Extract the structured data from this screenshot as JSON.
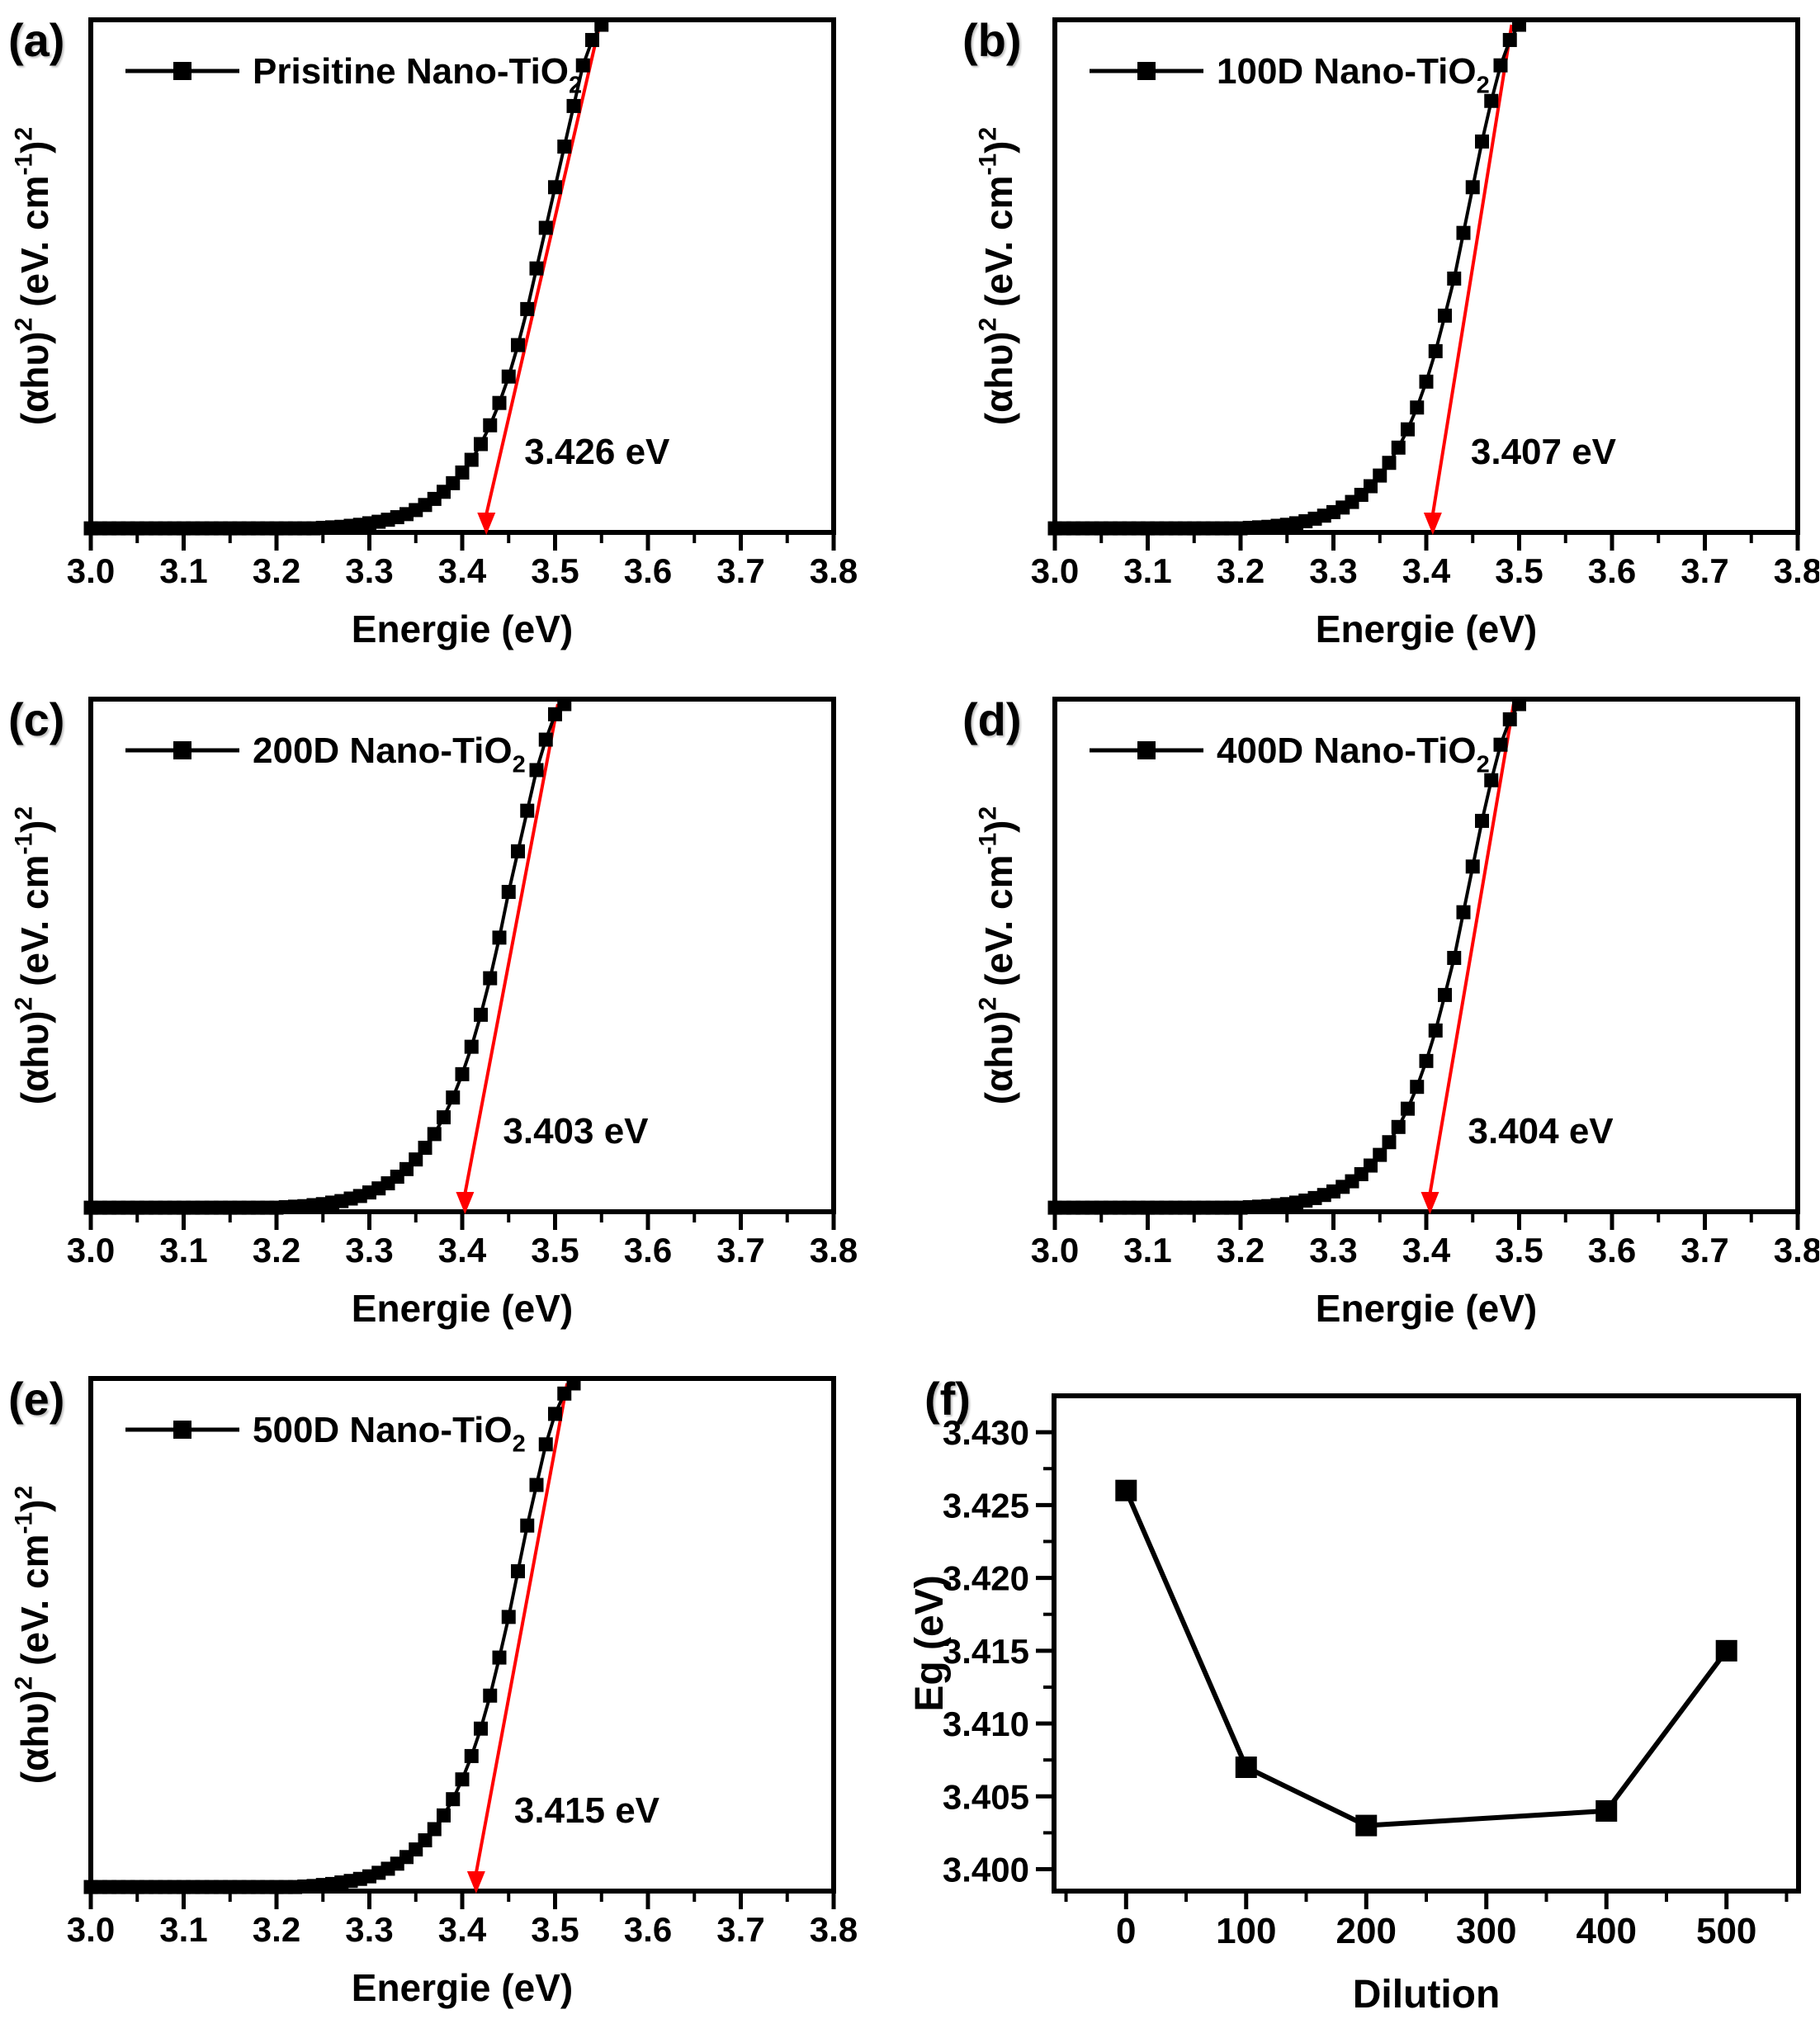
{
  "figure": {
    "background": "#ffffff",
    "ink_color": "#000000",
    "fit_line_color": "#ff0000",
    "marker_shape": "filled-square"
  },
  "chart_data": [
    {
      "type": "line",
      "panel_label": "(a)",
      "legend": "Prisitine Nano-TiO2",
      "legend_rich": [
        [
          "Prisitine Nano-TiO",
          0
        ],
        [
          "2",
          -1
        ]
      ],
      "xlabel": "Energie (eV)",
      "ylabel": "(αhυ)2 (eV. cm-1)2",
      "ylabel_rich": [
        [
          "(αhυ)",
          0
        ],
        [
          "2",
          1
        ],
        [
          " (eV. cm",
          0
        ],
        [
          "-1",
          1
        ],
        [
          ")",
          0
        ],
        [
          "2",
          1
        ]
      ],
      "xlim": [
        3.0,
        3.8
      ],
      "x_major_ticks": [
        3.0,
        3.1,
        3.2,
        3.3,
        3.4,
        3.5,
        3.6,
        3.7,
        3.8
      ],
      "x_major_tick_labels": [
        "3.0",
        "3.1",
        "3.2",
        "3.3",
        "3.4",
        "3.5",
        "3.6",
        "3.7",
        "3.8"
      ],
      "x_minor_step": 0.05,
      "y_axis_tick_labels": "none (arbitrary units)",
      "band_gap_eV": 3.426,
      "annotation": "3.426 eV",
      "fit_line": {
        "x_intercept": 3.426,
        "x_top": 3.548,
        "color": "#ff0000"
      },
      "series": {
        "x_start": 3.0,
        "x_step": 0.01,
        "y_norm": [
          0.008,
          0.008,
          0.008,
          0.008,
          0.008,
          0.008,
          0.008,
          0.008,
          0.008,
          0.008,
          0.008,
          0.008,
          0.008,
          0.008,
          0.008,
          0.008,
          0.008,
          0.008,
          0.008,
          0.008,
          0.008,
          0.008,
          0.008,
          0.008,
          0.008,
          0.009,
          0.01,
          0.011,
          0.013,
          0.015,
          0.018,
          0.021,
          0.025,
          0.03,
          0.036,
          0.044,
          0.054,
          0.066,
          0.08,
          0.097,
          0.118,
          0.143,
          0.174,
          0.211,
          0.255,
          0.307,
          0.369,
          0.44,
          0.52,
          0.6,
          0.68,
          0.76,
          0.84,
          0.92,
          0.97,
          1.0
        ]
      }
    },
    {
      "type": "line",
      "panel_label": "(b)",
      "legend": "100D Nano-TiO2",
      "legend_rich": [
        [
          "100D Nano-TiO",
          0
        ],
        [
          "2",
          -1
        ]
      ],
      "xlabel": "Energie (eV)",
      "ylabel": "(αhυ)2 (eV. cm-1)2",
      "ylabel_rich": [
        [
          "(αhυ)",
          0
        ],
        [
          "2",
          1
        ],
        [
          " (eV. cm",
          0
        ],
        [
          "-1",
          1
        ],
        [
          ")",
          0
        ],
        [
          "2",
          1
        ]
      ],
      "xlim": [
        3.0,
        3.8
      ],
      "x_major_ticks": [
        3.0,
        3.1,
        3.2,
        3.3,
        3.4,
        3.5,
        3.6,
        3.7,
        3.8
      ],
      "x_major_tick_labels": [
        "3.0",
        "3.1",
        "3.2",
        "3.3",
        "3.4",
        "3.5",
        "3.6",
        "3.7",
        "3.8"
      ],
      "x_minor_step": 0.05,
      "y_axis_tick_labels": "none (arbitrary units)",
      "band_gap_eV": 3.407,
      "annotation": "3.407 eV",
      "fit_line": {
        "x_intercept": 3.407,
        "x_top": 3.492,
        "color": "#ff0000"
      },
      "series": {
        "x_start": 3.0,
        "x_step": 0.01,
        "y_norm": [
          0.008,
          0.008,
          0.008,
          0.008,
          0.008,
          0.008,
          0.008,
          0.008,
          0.008,
          0.008,
          0.008,
          0.008,
          0.008,
          0.008,
          0.008,
          0.008,
          0.008,
          0.008,
          0.008,
          0.008,
          0.008,
          0.009,
          0.01,
          0.011,
          0.013,
          0.015,
          0.018,
          0.022,
          0.027,
          0.033,
          0.04,
          0.049,
          0.06,
          0.074,
          0.091,
          0.112,
          0.137,
          0.167,
          0.203,
          0.246,
          0.297,
          0.357,
          0.427,
          0.5,
          0.59,
          0.68,
          0.77,
          0.85,
          0.92,
          0.97,
          1.0
        ]
      }
    },
    {
      "type": "line",
      "panel_label": "(c)",
      "legend": "200D Nano-TiO2",
      "legend_rich": [
        [
          "200D Nano-TiO",
          0
        ],
        [
          "2",
          -1
        ]
      ],
      "xlabel": "Energie (eV)",
      "ylabel": "(αhυ)2 (eV. cm-1)2",
      "ylabel_rich": [
        [
          "(αhυ)",
          0
        ],
        [
          "2",
          1
        ],
        [
          " (eV. cm",
          0
        ],
        [
          "-1",
          1
        ],
        [
          ")",
          0
        ],
        [
          "2",
          1
        ]
      ],
      "xlim": [
        3.0,
        3.8
      ],
      "x_major_ticks": [
        3.0,
        3.1,
        3.2,
        3.3,
        3.4,
        3.5,
        3.6,
        3.7,
        3.8
      ],
      "x_major_tick_labels": [
        "3.0",
        "3.1",
        "3.2",
        "3.3",
        "3.4",
        "3.5",
        "3.6",
        "3.7",
        "3.8"
      ],
      "x_minor_step": 0.05,
      "y_axis_tick_labels": "none (arbitrary units)",
      "band_gap_eV": 3.403,
      "annotation": "3.403 eV",
      "fit_line": {
        "x_intercept": 3.403,
        "x_top": 3.503,
        "color": "#ff0000"
      },
      "series": {
        "x_start": 3.0,
        "x_step": 0.01,
        "y_norm": [
          0.008,
          0.008,
          0.008,
          0.008,
          0.008,
          0.008,
          0.008,
          0.008,
          0.008,
          0.008,
          0.008,
          0.008,
          0.008,
          0.008,
          0.008,
          0.008,
          0.008,
          0.008,
          0.008,
          0.008,
          0.008,
          0.009,
          0.01,
          0.011,
          0.013,
          0.015,
          0.018,
          0.021,
          0.026,
          0.031,
          0.038,
          0.046,
          0.056,
          0.069,
          0.084,
          0.103,
          0.126,
          0.153,
          0.186,
          0.225,
          0.271,
          0.325,
          0.388,
          0.46,
          0.54,
          0.63,
          0.71,
          0.79,
          0.87,
          0.93,
          0.98,
          1.0
        ]
      }
    },
    {
      "type": "line",
      "panel_label": "(d)",
      "legend": "400D Nano-TiO2",
      "legend_rich": [
        [
          "400D Nano-TiO",
          0
        ],
        [
          "2",
          -1
        ]
      ],
      "xlabel": "Energie (eV)",
      "ylabel": "(αhυ)2 (eV. cm-1)2",
      "ylabel_rich": [
        [
          "(αhυ)",
          0
        ],
        [
          "2",
          1
        ],
        [
          " (eV. cm",
          0
        ],
        [
          "-1",
          1
        ],
        [
          ")",
          0
        ],
        [
          "2",
          1
        ]
      ],
      "xlim": [
        3.0,
        3.8
      ],
      "x_major_ticks": [
        3.0,
        3.1,
        3.2,
        3.3,
        3.4,
        3.5,
        3.6,
        3.7,
        3.8
      ],
      "x_major_tick_labels": [
        "3.0",
        "3.1",
        "3.2",
        "3.3",
        "3.4",
        "3.5",
        "3.6",
        "3.7",
        "3.8"
      ],
      "x_minor_step": 0.05,
      "y_axis_tick_labels": "none (arbitrary units)",
      "band_gap_eV": 3.404,
      "annotation": "3.404 eV",
      "fit_line": {
        "x_intercept": 3.404,
        "x_top": 3.494,
        "color": "#ff0000"
      },
      "series": {
        "x_start": 3.0,
        "x_step": 0.01,
        "y_norm": [
          0.008,
          0.008,
          0.008,
          0.008,
          0.008,
          0.008,
          0.008,
          0.008,
          0.008,
          0.008,
          0.008,
          0.008,
          0.008,
          0.008,
          0.008,
          0.008,
          0.008,
          0.008,
          0.008,
          0.008,
          0.008,
          0.009,
          0.01,
          0.011,
          0.013,
          0.015,
          0.018,
          0.022,
          0.027,
          0.033,
          0.04,
          0.049,
          0.06,
          0.074,
          0.091,
          0.112,
          0.137,
          0.167,
          0.203,
          0.246,
          0.297,
          0.357,
          0.427,
          0.5,
          0.59,
          0.68,
          0.77,
          0.85,
          0.92,
          0.97,
          1.0
        ]
      }
    },
    {
      "type": "line",
      "panel_label": "(e)",
      "legend": "500D Nano-TiO2",
      "legend_rich": [
        [
          "500D Nano-TiO",
          0
        ],
        [
          "2",
          -1
        ]
      ],
      "xlabel": "Energie (eV)",
      "ylabel": "(αhυ)2 (eV. cm-1)2",
      "ylabel_rich": [
        [
          "(αhυ)",
          0
        ],
        [
          "2",
          1
        ],
        [
          " (eV. cm",
          0
        ],
        [
          "-1",
          1
        ],
        [
          ")",
          0
        ],
        [
          "2",
          1
        ]
      ],
      "xlim": [
        3.0,
        3.8
      ],
      "x_major_ticks": [
        3.0,
        3.1,
        3.2,
        3.3,
        3.4,
        3.5,
        3.6,
        3.7,
        3.8
      ],
      "x_major_tick_labels": [
        "3.0",
        "3.1",
        "3.2",
        "3.3",
        "3.4",
        "3.5",
        "3.6",
        "3.7",
        "3.8"
      ],
      "x_minor_step": 0.05,
      "y_axis_tick_labels": "none (arbitrary units)",
      "band_gap_eV": 3.415,
      "annotation": "3.415 eV",
      "fit_line": {
        "x_intercept": 3.415,
        "x_top": 3.513,
        "color": "#ff0000"
      },
      "series": {
        "x_start": 3.0,
        "x_step": 0.01,
        "y_norm": [
          0.008,
          0.008,
          0.008,
          0.008,
          0.008,
          0.008,
          0.008,
          0.008,
          0.008,
          0.008,
          0.008,
          0.008,
          0.008,
          0.008,
          0.008,
          0.008,
          0.008,
          0.008,
          0.008,
          0.008,
          0.008,
          0.008,
          0.008,
          0.009,
          0.01,
          0.012,
          0.014,
          0.017,
          0.02,
          0.024,
          0.029,
          0.036,
          0.044,
          0.054,
          0.067,
          0.082,
          0.1,
          0.122,
          0.149,
          0.181,
          0.22,
          0.266,
          0.32,
          0.385,
          0.46,
          0.54,
          0.63,
          0.72,
          0.8,
          0.88,
          0.94,
          0.98,
          1.0
        ]
      }
    },
    {
      "type": "scatter",
      "panel_label": "(f)",
      "xlabel": "Dilution",
      "ylabel": "Eg (eV)",
      "x": [
        0,
        100,
        200,
        400,
        500
      ],
      "y": [
        3.426,
        3.407,
        3.403,
        3.404,
        3.415
      ],
      "xlim": [
        -60,
        560
      ],
      "ylim": [
        3.3985,
        3.4325
      ],
      "x_major_ticks": [
        0,
        100,
        200,
        300,
        400,
        500
      ],
      "x_major_tick_labels": [
        "0",
        "100",
        "200",
        "300",
        "400",
        "500"
      ],
      "x_minor_ticks": [
        -50,
        50,
        150,
        250,
        350,
        450,
        550
      ],
      "y_major_ticks": [
        3.4,
        3.405,
        3.41,
        3.415,
        3.42,
        3.425,
        3.43
      ],
      "y_major_tick_labels": [
        "3.400",
        "3.405",
        "3.410",
        "3.415",
        "3.420",
        "3.425",
        "3.430"
      ],
      "y_minor_ticks": [
        3.4025,
        3.4075,
        3.4125,
        3.4175,
        3.4225,
        3.4275
      ],
      "grid": "off",
      "legend_position": "none"
    }
  ]
}
